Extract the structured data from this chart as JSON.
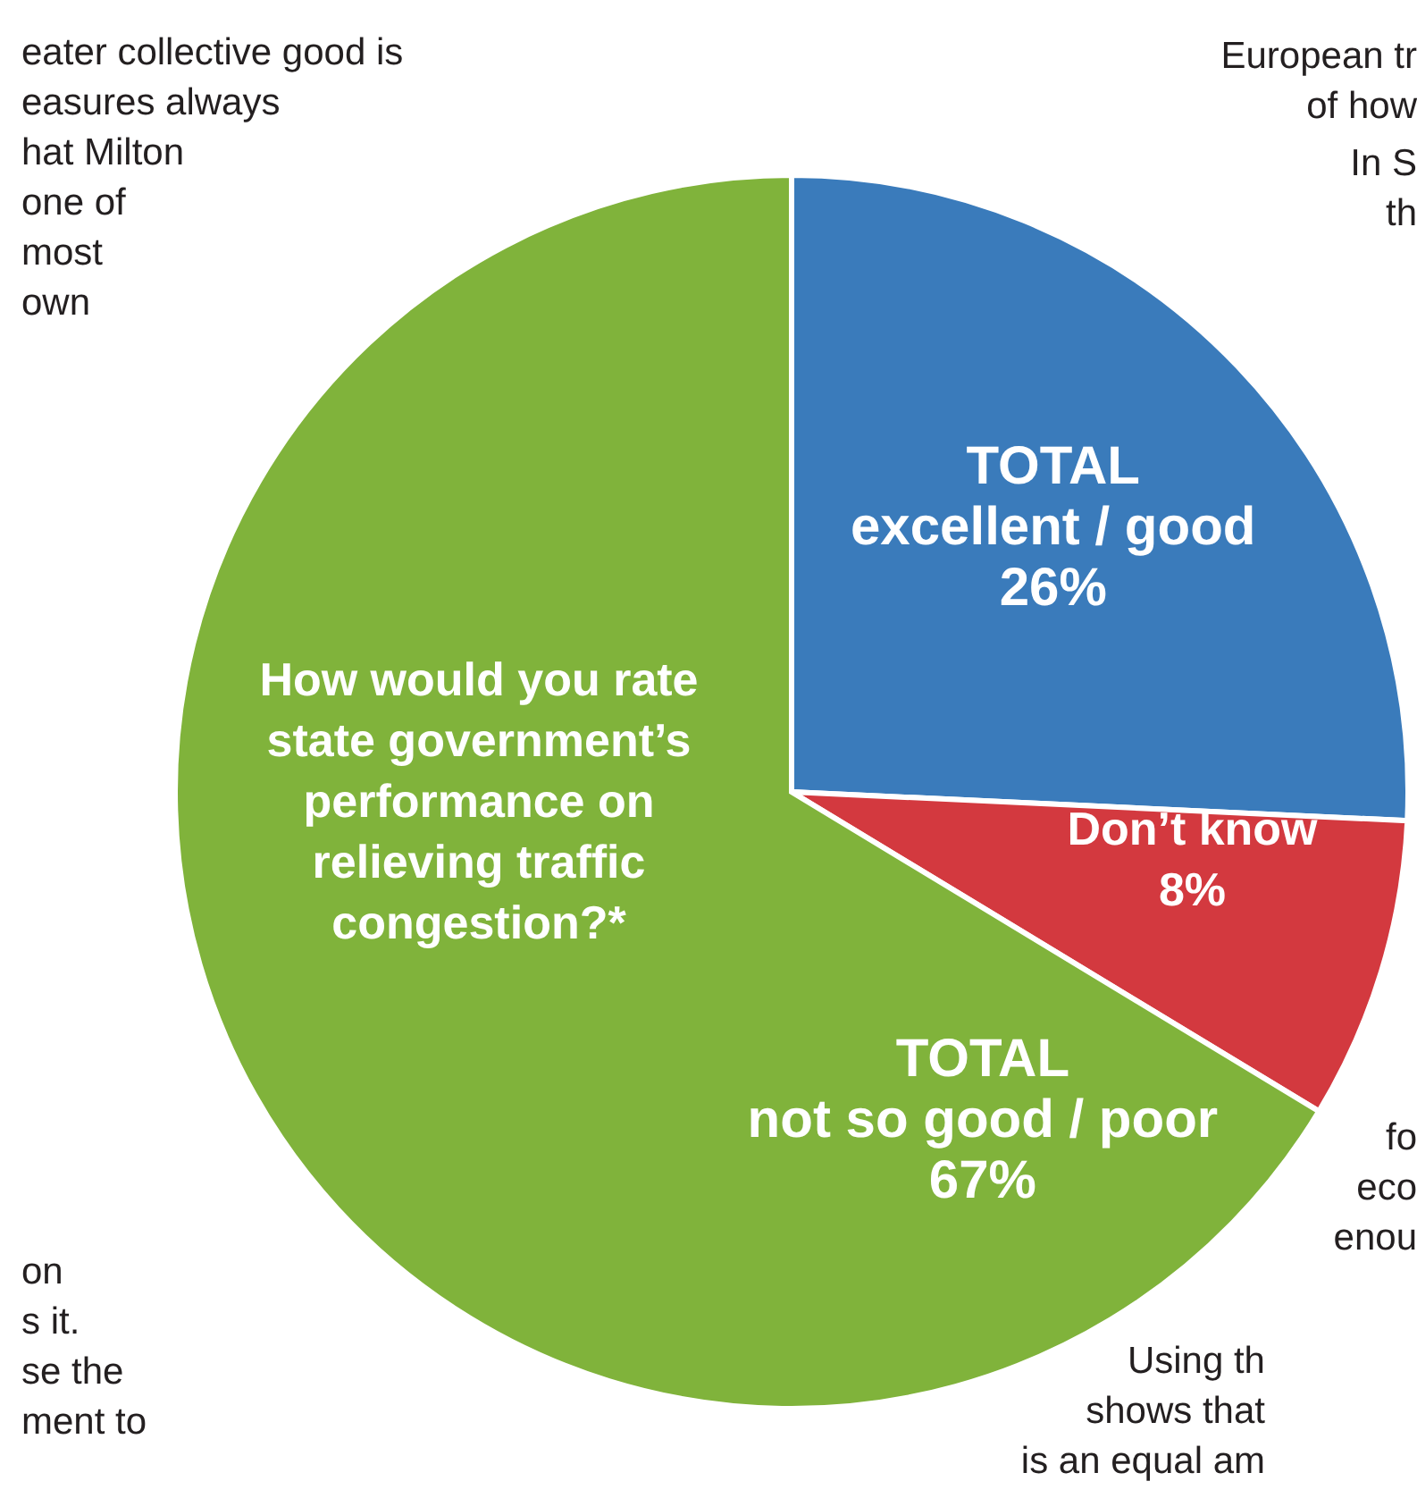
{
  "chart_data": {
    "type": "pie",
    "title": "How would you rate state government’s performance on relieving traffic congestion?*",
    "categories": [
      "TOTAL\nexcellent / good",
      "Don’t know",
      "TOTAL\nnot so good / poor"
    ],
    "values": [
      26,
      8,
      67
    ],
    "colors": [
      "#3a7bbb",
      "#d3393f",
      "#80b33b"
    ],
    "value_labels": [
      "26%",
      "8%",
      "67%"
    ],
    "legend": false,
    "annotations": [
      "eater collective good is\neasures always\nhat Milton\none of\nmost\nown",
      "European tr\nof how",
      "In S\nth",
      "on\ns it.\nse the\nment to",
      "fo\neco\nenou",
      "Using th\nshows that\nis an equal am"
    ]
  }
}
